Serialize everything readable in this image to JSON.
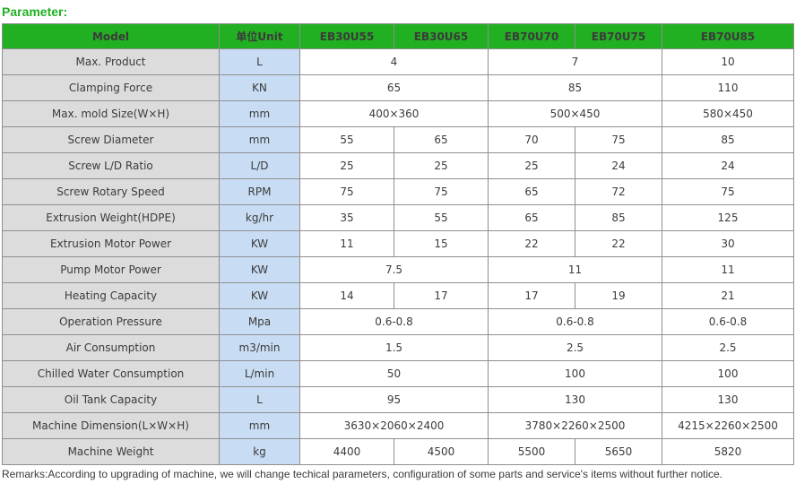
{
  "title": "Parameter:",
  "colors": {
    "header_bg": "#21b021",
    "header_text": "#ffffff",
    "label_bg": "#dcdcdc",
    "unit_bg": "#c8dcf3",
    "title": "#21b021"
  },
  "header": [
    "Model",
    "单位Unit",
    "EB30U55",
    "EB30U65",
    "EB70U70",
    "EB70U75",
    "EB70U85"
  ],
  "rows": [
    {
      "label": "Max. Product",
      "unit": "L",
      "values": [
        "4",
        "7",
        "10"
      ]
    },
    {
      "label": "Clamping Force",
      "unit": "KN",
      "values": [
        "65",
        "85",
        "110"
      ]
    },
    {
      "label": "Max. mold Size(W×H)",
      "unit": "mm",
      "values": [
        "400×360",
        "500×450",
        "580×450"
      ]
    },
    {
      "label": "Screw Diameter",
      "unit": "mm",
      "values": [
        "55",
        "65",
        "70",
        "75",
        "85"
      ]
    },
    {
      "label": "Screw L/D Ratio",
      "unit": "L/D",
      "values": [
        "25",
        "25",
        "25",
        "24",
        "24"
      ]
    },
    {
      "label": "Screw Rotary Speed",
      "unit": "RPM",
      "values": [
        "75",
        "75",
        "65",
        "72",
        "75"
      ]
    },
    {
      "label": "Extrusion Weight(HDPE)",
      "unit": "kg/hr",
      "values": [
        "35",
        "55",
        "65",
        "85",
        "125"
      ]
    },
    {
      "label": "Extrusion Motor Power",
      "unit": "KW",
      "values": [
        "11",
        "15",
        "22",
        "22",
        "30"
      ]
    },
    {
      "label": "Pump Motor Power",
      "unit": "KW",
      "values": [
        "7.5",
        "11",
        "11"
      ]
    },
    {
      "label": "Heating Capacity",
      "unit": "KW",
      "values": [
        "14",
        "17",
        "17",
        "19",
        "21"
      ]
    },
    {
      "label": "Operation Pressure",
      "unit": "Mpa",
      "values": [
        "0.6-0.8",
        "0.6-0.8",
        "0.6-0.8"
      ]
    },
    {
      "label": "Air Consumption",
      "unit": "m3/min",
      "values": [
        "1.5",
        "2.5",
        "2.5"
      ]
    },
    {
      "label": "Chilled Water Consumption",
      "unit": "L/min",
      "values": [
        "50",
        "100",
        "100"
      ]
    },
    {
      "label": "Oil Tank Capacity",
      "unit": "L",
      "values": [
        "95",
        "130",
        "130"
      ]
    },
    {
      "label": "Machine Dimension(L×W×H)",
      "unit": "mm",
      "values": [
        "3630×2060×2400",
        "3780×2260×2500",
        "4215×2260×2500"
      ]
    },
    {
      "label": "Machine Weight",
      "unit": "kg",
      "values": [
        "4400",
        "4500",
        "5500",
        "5650",
        "5820"
      ]
    }
  ],
  "remarks": "Remarks:According to upgrading of machine, we will change techical parameters, configuration of some parts and service's items without further notice."
}
